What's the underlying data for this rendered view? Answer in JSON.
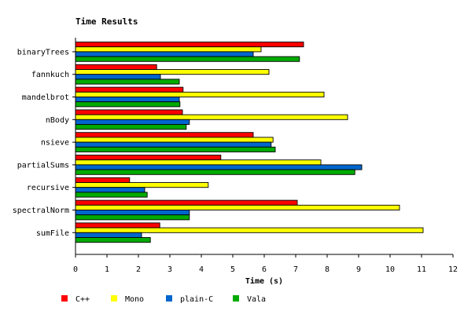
{
  "chart_data": {
    "type": "bar",
    "orientation": "horizontal",
    "title": "Time Results",
    "xlabel": "Time (s)",
    "ylabel": "",
    "xlim": [
      0,
      12
    ],
    "x_ticks": [
      0,
      1,
      2,
      3,
      4,
      5,
      6,
      7,
      8,
      9,
      10,
      11,
      12
    ],
    "grid": false,
    "legend_position": "bottom",
    "categories": [
      "binaryTrees",
      "fannkuch",
      "mandelbrot",
      "nBody",
      "nsieve",
      "partialSums",
      "recursive",
      "spectralNorm",
      "sumFile"
    ],
    "series": [
      {
        "name": "C++",
        "color": "#ff0000",
        "values": [
          7.25,
          2.58,
          3.42,
          3.4,
          5.65,
          4.62,
          1.72,
          7.05,
          2.68
        ]
      },
      {
        "name": "Mono",
        "color": "#ffff00",
        "values": [
          5.9,
          6.15,
          7.9,
          8.65,
          6.28,
          7.8,
          4.22,
          10.3,
          11.05
        ]
      },
      {
        "name": "plain-C",
        "color": "#0066cc",
        "values": [
          5.65,
          2.7,
          3.3,
          3.62,
          6.22,
          9.1,
          2.2,
          3.62,
          2.1
        ]
      },
      {
        "name": "Vala",
        "color": "#00aa00",
        "values": [
          7.12,
          3.3,
          3.32,
          3.52,
          6.35,
          8.88,
          2.28,
          3.62,
          2.38
        ]
      }
    ]
  }
}
